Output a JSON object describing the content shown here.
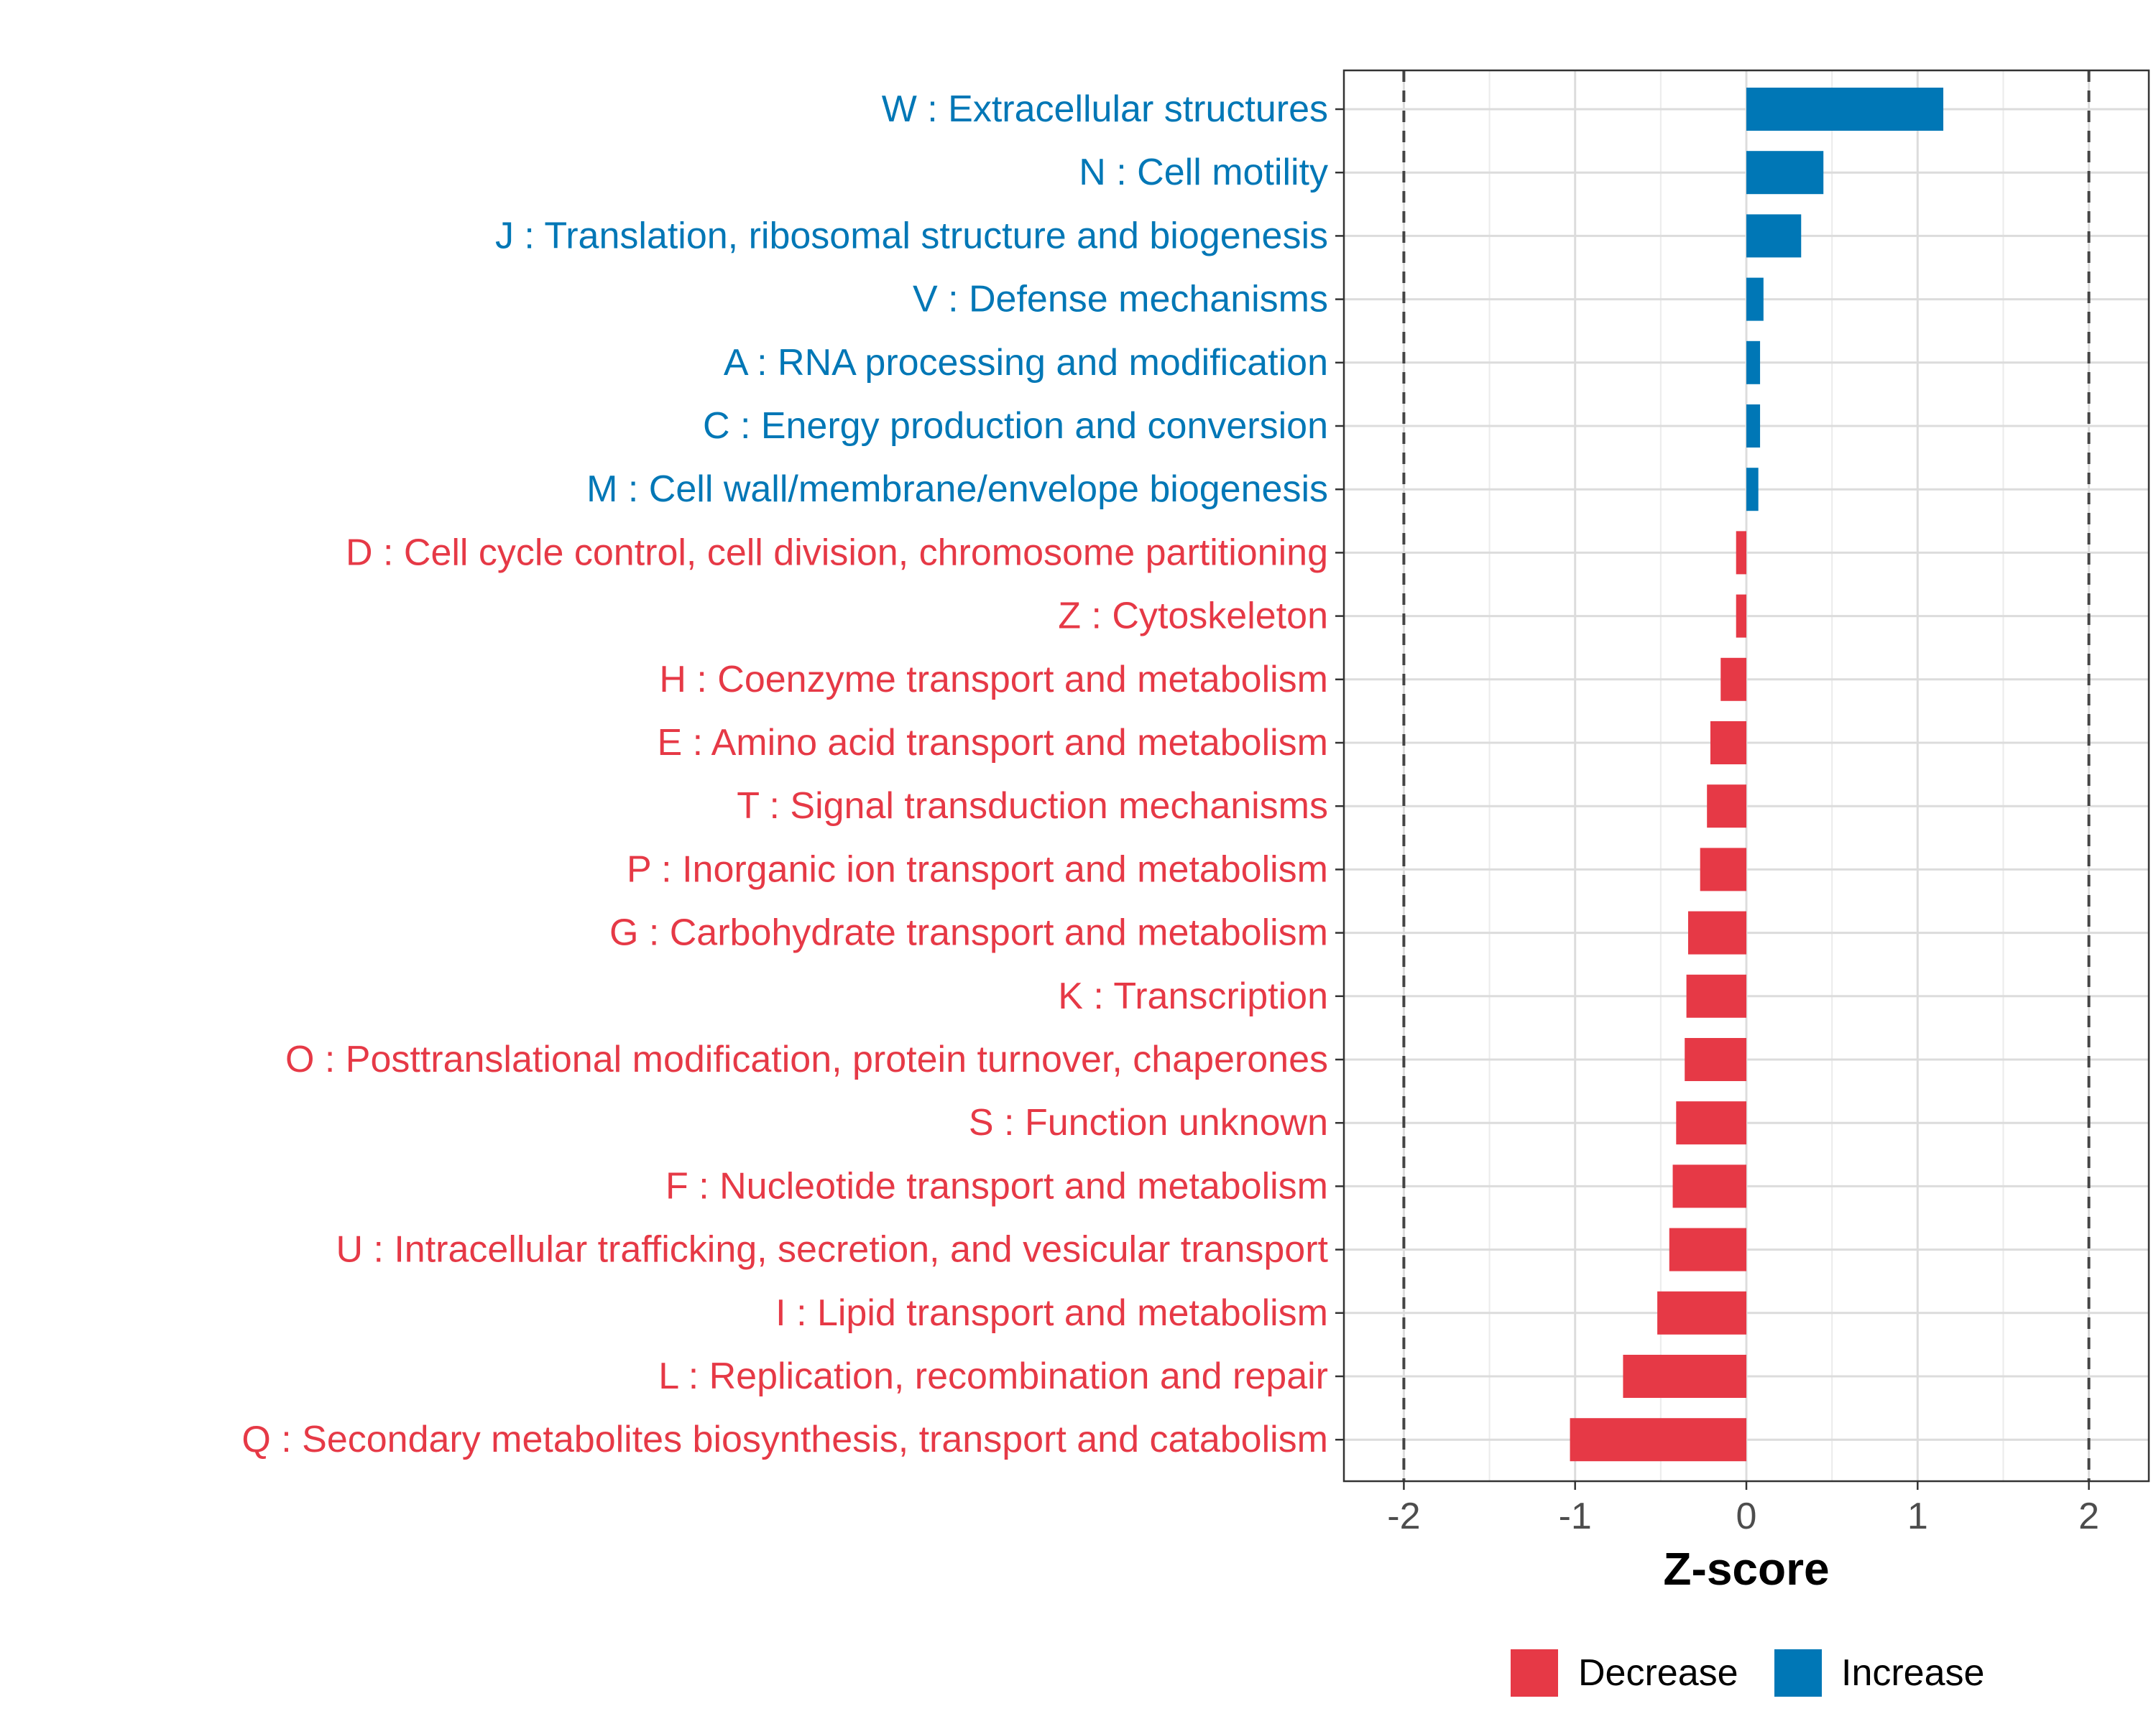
{
  "chart_data": {
    "type": "bar",
    "orientation": "horizontal",
    "xlabel": "Z-score",
    "ylabel": "",
    "xlim": [
      -2.35,
      2.35
    ],
    "x_ticks": [
      -2,
      -1,
      0,
      1,
      2
    ],
    "x_tick_labels": [
      "-2",
      "-1",
      "0",
      "1",
      "2"
    ],
    "reference_lines": [
      -2,
      2
    ],
    "grid": true,
    "legend_position": "bottom",
    "colors": {
      "Decrease": "#E63946",
      "Increase": "#0077B6"
    },
    "legend": [
      {
        "label": "Decrease",
        "color": "#E63946"
      },
      {
        "label": "Increase",
        "color": "#0077B6"
      }
    ],
    "categories": [
      "W : Extracellular structures",
      "N : Cell motility",
      "J : Translation, ribosomal structure and biogenesis",
      "V : Defense mechanisms",
      "A : RNA processing and modification",
      "C : Energy production and conversion",
      "M : Cell wall/membrane/envelope biogenesis",
      "D : Cell cycle control, cell division, chromosome partitioning",
      "Z : Cytoskeleton",
      "H : Coenzyme transport and metabolism",
      "E : Amino acid transport and metabolism",
      "T : Signal transduction mechanisms",
      "P : Inorganic ion transport and metabolism",
      "G : Carbohydrate transport and metabolism",
      "K : Transcription",
      "O : Posttranslational modification, protein turnover, chaperones",
      "S : Function unknown",
      "F : Nucleotide transport and metabolism",
      "U : Intracellular trafficking, secretion, and vesicular transport",
      "I : Lipid transport and metabolism",
      "L : Replication, recombination and repair",
      "Q : Secondary metabolites biosynthesis, transport and catabolism"
    ],
    "values": [
      1.15,
      0.45,
      0.32,
      0.1,
      0.08,
      0.08,
      0.07,
      -0.06,
      -0.06,
      -0.15,
      -0.21,
      -0.23,
      -0.27,
      -0.34,
      -0.35,
      -0.36,
      -0.41,
      -0.43,
      -0.45,
      -0.52,
      -0.72,
      -1.03
    ],
    "groups": [
      "Increase",
      "Increase",
      "Increase",
      "Increase",
      "Increase",
      "Increase",
      "Increase",
      "Decrease",
      "Decrease",
      "Decrease",
      "Decrease",
      "Decrease",
      "Decrease",
      "Decrease",
      "Decrease",
      "Decrease",
      "Decrease",
      "Decrease",
      "Decrease",
      "Decrease",
      "Decrease",
      "Decrease"
    ]
  }
}
